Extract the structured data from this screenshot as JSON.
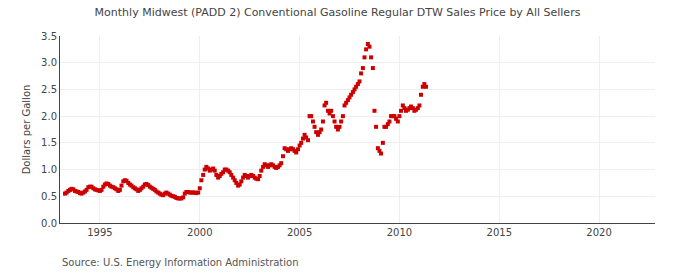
{
  "chart_data": {
    "type": "scatter",
    "title": "Monthly Midwest (PADD 2) Conventional Gasoline Regular DTW Sales Price by All Sellers",
    "ylabel": "Dollars per Gallon",
    "annotations": [
      "Source: U.S. Energy Information Administration"
    ],
    "color": "#cc0000",
    "marker": "square",
    "grid": true,
    "xlim": [
      1993.0,
      2022.8
    ],
    "ylim": [
      0.0,
      3.5
    ],
    "xticks": [
      1995,
      2000,
      2005,
      2010,
      2015,
      2020
    ],
    "yticks": [
      {
        "value": 0.0,
        "label": "0.0"
      },
      0.5,
      {
        "value": 1.0,
        "label": "1.0"
      },
      1.5,
      {
        "value": 2.0,
        "label": "2.0"
      },
      2.5,
      {
        "value": 3.0,
        "label": "3.0"
      },
      3.5
    ],
    "x": [
      1993.25,
      1993.33,
      1993.42,
      1993.5,
      1993.58,
      1993.67,
      1993.75,
      1993.83,
      1993.92,
      1994.0,
      1994.08,
      1994.17,
      1994.25,
      1994.33,
      1994.42,
      1994.5,
      1994.58,
      1994.67,
      1994.75,
      1994.83,
      1994.92,
      1995.0,
      1995.08,
      1995.17,
      1995.25,
      1995.33,
      1995.42,
      1995.5,
      1995.58,
      1995.67,
      1995.75,
      1995.83,
      1995.92,
      1996.0,
      1996.08,
      1996.17,
      1996.25,
      1996.33,
      1996.42,
      1996.5,
      1996.58,
      1996.67,
      1996.75,
      1996.83,
      1996.92,
      1997.0,
      1997.08,
      1997.17,
      1997.25,
      1997.33,
      1997.42,
      1997.5,
      1997.58,
      1997.67,
      1997.75,
      1997.83,
      1997.92,
      1998.0,
      1998.08,
      1998.17,
      1998.25,
      1998.33,
      1998.42,
      1998.5,
      1998.58,
      1998.67,
      1998.75,
      1998.83,
      1998.92,
      1999.0,
      1999.08,
      1999.17,
      1999.25,
      1999.33,
      1999.42,
      1999.5,
      1999.58,
      1999.67,
      1999.75,
      1999.83,
      1999.92,
      2000.0,
      2000.08,
      2000.17,
      2000.25,
      2000.33,
      2000.42,
      2000.5,
      2000.58,
      2000.67,
      2000.75,
      2000.83,
      2000.92,
      2001.0,
      2001.08,
      2001.17,
      2001.25,
      2001.33,
      2001.42,
      2001.5,
      2001.58,
      2001.67,
      2001.75,
      2001.83,
      2001.92,
      2002.0,
      2002.08,
      2002.17,
      2002.25,
      2002.33,
      2002.42,
      2002.5,
      2002.58,
      2002.67,
      2002.75,
      2002.83,
      2002.92,
      2003.0,
      2003.08,
      2003.17,
      2003.25,
      2003.33,
      2003.42,
      2003.5,
      2003.58,
      2003.67,
      2003.75,
      2003.83,
      2003.92,
      2004.0,
      2004.08,
      2004.17,
      2004.25,
      2004.33,
      2004.42,
      2004.5,
      2004.58,
      2004.67,
      2004.75,
      2004.83,
      2004.92,
      2005.0,
      2005.08,
      2005.17,
      2005.25,
      2005.33,
      2005.42,
      2005.5,
      2005.58,
      2005.67,
      2005.75,
      2005.83,
      2005.92,
      2006.0,
      2006.08,
      2006.17,
      2006.25,
      2006.33,
      2006.42,
      2006.5,
      2006.58,
      2006.67,
      2006.75,
      2006.83,
      2006.92,
      2007.0,
      2007.08,
      2007.17,
      2007.25,
      2007.33,
      2007.42,
      2007.5,
      2007.58,
      2007.67,
      2007.75,
      2007.83,
      2007.92,
      2008.0,
      2008.08,
      2008.17,
      2008.25,
      2008.33,
      2008.42,
      2008.5,
      2008.58,
      2008.67,
      2008.75,
      2008.83,
      2008.92,
      2009.0,
      2009.08,
      2009.17,
      2009.25,
      2009.33,
      2009.42,
      2009.5,
      2009.58,
      2009.67,
      2009.75,
      2009.83,
      2009.92,
      2010.0,
      2010.08,
      2010.17,
      2010.25,
      2010.33,
      2010.42,
      2010.5,
      2010.58,
      2010.67,
      2010.75,
      2010.83,
      2010.92,
      2011.0,
      2011.08,
      2011.17,
      2011.25,
      2011.33
    ],
    "values": [
      0.55,
      0.57,
      0.6,
      0.62,
      0.64,
      0.63,
      0.6,
      0.59,
      0.58,
      0.56,
      0.55,
      0.57,
      0.59,
      0.62,
      0.67,
      0.68,
      0.68,
      0.65,
      0.63,
      0.62,
      0.61,
      0.6,
      0.62,
      0.68,
      0.72,
      0.74,
      0.73,
      0.7,
      0.68,
      0.67,
      0.65,
      0.63,
      0.6,
      0.62,
      0.7,
      0.78,
      0.8,
      0.79,
      0.75,
      0.72,
      0.7,
      0.67,
      0.65,
      0.63,
      0.6,
      0.62,
      0.65,
      0.68,
      0.72,
      0.73,
      0.71,
      0.68,
      0.66,
      0.64,
      0.62,
      0.59,
      0.57,
      0.55,
      0.53,
      0.52,
      0.55,
      0.57,
      0.55,
      0.53,
      0.51,
      0.5,
      0.49,
      0.47,
      0.46,
      0.46,
      0.46,
      0.48,
      0.55,
      0.58,
      0.58,
      0.57,
      0.57,
      0.57,
      0.57,
      0.56,
      0.57,
      0.65,
      0.8,
      0.9,
      1.0,
      1.05,
      1.02,
      0.98,
      1.0,
      1.02,
      0.98,
      0.9,
      0.85,
      0.88,
      0.92,
      0.95,
      1.0,
      1.0,
      0.98,
      0.95,
      0.9,
      0.85,
      0.8,
      0.75,
      0.7,
      0.72,
      0.78,
      0.85,
      0.9,
      0.88,
      0.85,
      0.88,
      0.9,
      0.88,
      0.85,
      0.83,
      0.82,
      0.88,
      0.98,
      1.05,
      1.1,
      1.08,
      1.05,
      1.08,
      1.1,
      1.08,
      1.05,
      1.03,
      1.05,
      1.08,
      1.12,
      1.25,
      1.4,
      1.38,
      1.35,
      1.38,
      1.4,
      1.38,
      1.35,
      1.32,
      1.38,
      1.45,
      1.5,
      1.58,
      1.65,
      1.6,
      1.55,
      2.0,
      2.0,
      1.9,
      1.8,
      1.7,
      1.65,
      1.7,
      1.75,
      1.9,
      2.2,
      2.25,
      2.1,
      2.05,
      2.1,
      2.0,
      1.9,
      1.8,
      1.75,
      1.8,
      1.9,
      2.0,
      2.2,
      2.25,
      2.3,
      2.35,
      2.4,
      2.45,
      2.5,
      2.55,
      2.6,
      2.65,
      2.8,
      2.9,
      3.1,
      3.25,
      3.35,
      3.3,
      3.1,
      2.9,
      2.1,
      1.8,
      1.4,
      1.35,
      1.3,
      1.5,
      1.8,
      1.8,
      1.85,
      1.9,
      2.0,
      2.0,
      2.0,
      1.95,
      1.9,
      2.0,
      2.1,
      2.2,
      2.15,
      2.1,
      2.12,
      2.15,
      2.18,
      2.15,
      2.1,
      2.12,
      2.15,
      2.2,
      2.4,
      2.55,
      2.6,
      2.55
    ]
  }
}
